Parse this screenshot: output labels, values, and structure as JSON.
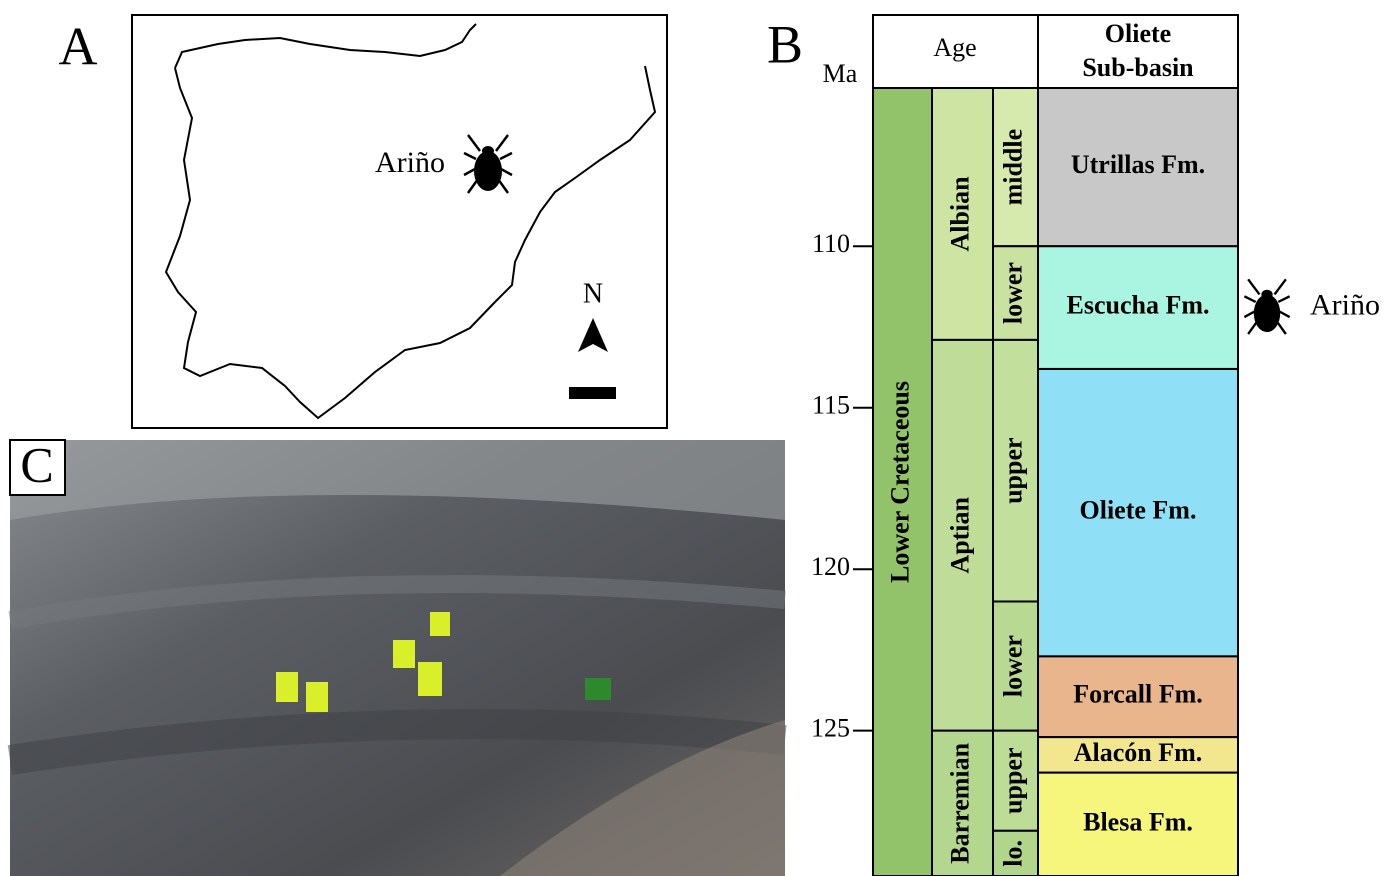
{
  "panel_a": {
    "label": "A",
    "site": "Ariño",
    "north": "N"
  },
  "panel_b": {
    "label": "B",
    "unit": "Ma",
    "header": {
      "age": "Age",
      "basin": [
        "Oliete",
        "Sub-basin"
      ]
    },
    "ylim": [
      105.1,
      129.5
    ],
    "yticks": [
      110,
      115,
      120,
      125
    ],
    "epoch": {
      "name": "Lower Cretaceous",
      "top": 105.1,
      "base": 129.5,
      "color": "#92c36a"
    },
    "stages": [
      {
        "name": "Albian",
        "top": 105.1,
        "base": 112.9,
        "color": "#cde4a2"
      },
      {
        "name": "Aptian",
        "top": 112.9,
        "base": 125.0,
        "color": "#bfdd98"
      },
      {
        "name": "Barremian",
        "top": 125.0,
        "base": 129.5,
        "color": "#b3d78f"
      }
    ],
    "substages": [
      {
        "name": "middle",
        "top": 105.1,
        "base": 110.0,
        "color": "#d6eaad"
      },
      {
        "name": "lower",
        "top": 110.0,
        "base": 112.9,
        "color": "#c9e29f"
      },
      {
        "name": "upper",
        "top": 112.9,
        "base": 121.0,
        "color": "#c3df9c"
      },
      {
        "name": "lower",
        "top": 121.0,
        "base": 125.0,
        "color": "#b7d991"
      },
      {
        "name": "upper",
        "top": 125.0,
        "base": 128.1,
        "color": "#bddc96"
      },
      {
        "name": "lo.",
        "top": 128.1,
        "base": 129.5,
        "color": "#b0d58b"
      }
    ],
    "formations": [
      {
        "name": "Utrillas Fm.",
        "top": 105.1,
        "base": 110.0,
        "color": "#c8c8c8"
      },
      {
        "name": "Escucha Fm.",
        "top": 110.0,
        "base": 113.8,
        "color": "#a9f5e1"
      },
      {
        "name": "Oliete Fm.",
        "top": 113.8,
        "base": 122.7,
        "color": "#8fe0f6"
      },
      {
        "name": "Forcall Fm.",
        "top": 122.7,
        "base": 125.2,
        "color": "#e9b58c"
      },
      {
        "name": "Alacón Fm.",
        "top": 125.2,
        "base": 126.3,
        "color": "#f2e68f"
      },
      {
        "name": "Blesa Fm.",
        "top": 126.3,
        "base": 129.5,
        "color": "#f6f57c"
      }
    ],
    "site": "Ariño"
  },
  "panel_c": {
    "label": "C"
  }
}
